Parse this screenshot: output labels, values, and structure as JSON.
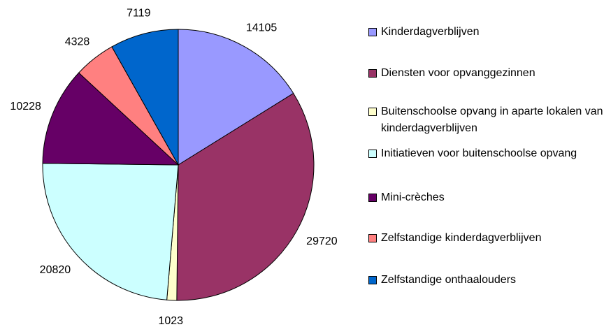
{
  "chart_data": {
    "type": "pie",
    "categories": [
      "Kinderdagverblijven",
      "Diensten voor opvanggezinnen",
      "Buitenschoolse opvang in aparte lokalen van kinderdagverblijven",
      "Initiatieven voor buitenschoolse opvang",
      "Mini-crèches",
      "Zelfstandige kinderdagverblijven",
      "Zelfstandige onthaalouders"
    ],
    "values": [
      14105,
      29720,
      1023,
      20820,
      10228,
      4328,
      7119
    ],
    "colors": [
      "#9999ff",
      "#993366",
      "#ffffcc",
      "#ccffff",
      "#660066",
      "#ff8080",
      "#0066cc"
    ],
    "legend": "right"
  }
}
